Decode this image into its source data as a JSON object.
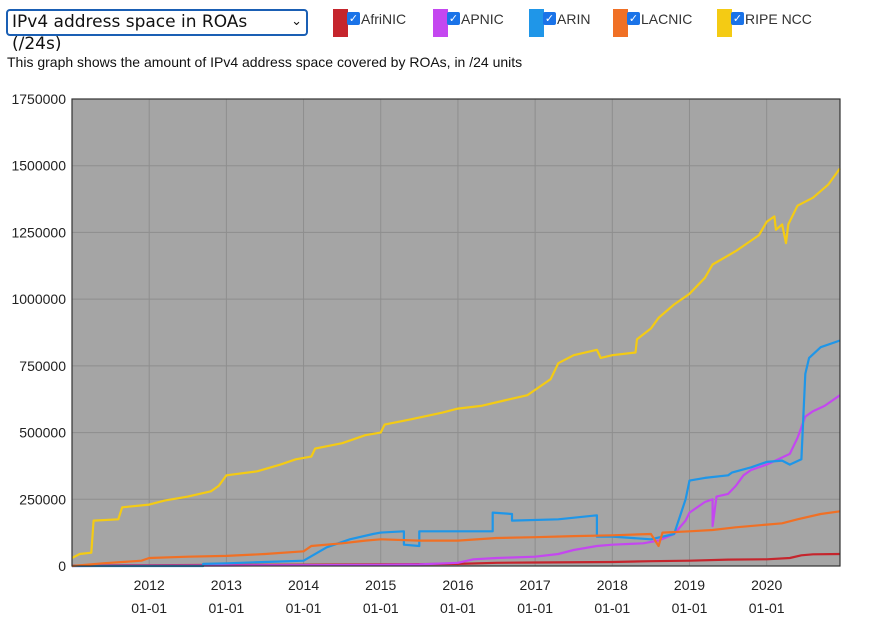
{
  "metric_select": {
    "value": "IPv4 address space in ROAs (/24s)"
  },
  "legend": [
    {
      "name": "AfriNIC",
      "color": "#c5252d"
    },
    {
      "name": "APNIC",
      "color": "#c447f0"
    },
    {
      "name": "ARIN",
      "color": "#1f96e8"
    },
    {
      "name": "LACNIC",
      "color": "#f07025"
    },
    {
      "name": "RIPE NCC",
      "color": "#f4cb14"
    }
  ],
  "description": "This graph shows the amount of IPv4 address space covered by ROAs, in /24 units",
  "chart_data": {
    "type": "line",
    "title": "",
    "xlabel": "",
    "ylabel": "",
    "xlim": [
      2011.0,
      2020.95
    ],
    "ylim": [
      0,
      1750000
    ],
    "background": "#a5a5a5",
    "grid": true,
    "y_ticks": [
      {
        "value": 0,
        "label": "0"
      },
      {
        "value": 250000,
        "label": "250000"
      },
      {
        "value": 500000,
        "label": "500000"
      },
      {
        "value": 750000,
        "label": "750000"
      },
      {
        "value": 1000000,
        "label": "1000000"
      },
      {
        "value": 1250000,
        "label": "1250000"
      },
      {
        "value": 1500000,
        "label": "1500000"
      },
      {
        "value": 1750000,
        "label": "1750000"
      }
    ],
    "x_ticks": [
      {
        "value": 2012,
        "label": "2012",
        "sublabel": "01-01"
      },
      {
        "value": 2013,
        "label": "2013",
        "sublabel": "01-01"
      },
      {
        "value": 2014,
        "label": "2014",
        "sublabel": "01-01"
      },
      {
        "value": 2015,
        "label": "2015",
        "sublabel": "01-01"
      },
      {
        "value": 2016,
        "label": "2016",
        "sublabel": "01-01"
      },
      {
        "value": 2017,
        "label": "2017",
        "sublabel": "01-01"
      },
      {
        "value": 2018,
        "label": "2018",
        "sublabel": "01-01"
      },
      {
        "value": 2019,
        "label": "2019",
        "sublabel": "01-01"
      },
      {
        "value": 2020,
        "label": "2020",
        "sublabel": "01-01"
      }
    ],
    "series": [
      {
        "name": "AfriNIC",
        "color": "#c5252d",
        "points": [
          [
            2011.0,
            1500
          ],
          [
            2011.5,
            2500
          ],
          [
            2012.0,
            3000
          ],
          [
            2013.0,
            4000
          ],
          [
            2014.0,
            5000
          ],
          [
            2015.0,
            6000
          ],
          [
            2016.0,
            8000
          ],
          [
            2016.5,
            12000
          ],
          [
            2017.0,
            13000
          ],
          [
            2018.0,
            15000
          ],
          [
            2018.5,
            18000
          ],
          [
            2019.0,
            20000
          ],
          [
            2019.5,
            24000
          ],
          [
            2020.0,
            25000
          ],
          [
            2020.3,
            30000
          ],
          [
            2020.45,
            40000
          ],
          [
            2020.6,
            44000
          ],
          [
            2020.95,
            45000
          ]
        ]
      },
      {
        "name": "APNIC",
        "color": "#c447f0",
        "points": [
          [
            2011.0,
            0
          ],
          [
            2012.0,
            1000
          ],
          [
            2013.0,
            2000
          ],
          [
            2014.0,
            3000
          ],
          [
            2015.0,
            4000
          ],
          [
            2015.5,
            6000
          ],
          [
            2016.0,
            12000
          ],
          [
            2016.2,
            25000
          ],
          [
            2016.5,
            30000
          ],
          [
            2017.0,
            35000
          ],
          [
            2017.3,
            45000
          ],
          [
            2017.5,
            60000
          ],
          [
            2017.8,
            75000
          ],
          [
            2018.0,
            80000
          ],
          [
            2018.4,
            85000
          ],
          [
            2018.6,
            95000
          ],
          [
            2018.8,
            120000
          ],
          [
            2018.95,
            170000
          ],
          [
            2019.0,
            200000
          ],
          [
            2019.2,
            240000
          ],
          [
            2019.3,
            250000
          ],
          [
            2019.3,
            150000
          ],
          [
            2019.35,
            260000
          ],
          [
            2019.5,
            270000
          ],
          [
            2019.6,
            300000
          ],
          [
            2019.7,
            340000
          ],
          [
            2019.8,
            360000
          ],
          [
            2020.0,
            380000
          ],
          [
            2020.15,
            400000
          ],
          [
            2020.3,
            420000
          ],
          [
            2020.4,
            480000
          ],
          [
            2020.5,
            560000
          ],
          [
            2020.6,
            580000
          ],
          [
            2020.75,
            600000
          ],
          [
            2020.95,
            640000
          ]
        ]
      },
      {
        "name": "ARIN",
        "color": "#1f96e8",
        "points": [
          [
            2011.0,
            0
          ],
          [
            2012.0,
            0
          ],
          [
            2012.7,
            0
          ],
          [
            2012.7,
            8000
          ],
          [
            2013.0,
            10000
          ],
          [
            2013.5,
            15000
          ],
          [
            2014.0,
            20000
          ],
          [
            2014.3,
            70000
          ],
          [
            2014.6,
            100000
          ],
          [
            2014.9,
            120000
          ],
          [
            2015.0,
            125000
          ],
          [
            2015.3,
            130000
          ],
          [
            2015.3,
            80000
          ],
          [
            2015.5,
            75000
          ],
          [
            2015.5,
            130000
          ],
          [
            2016.0,
            130000
          ],
          [
            2016.45,
            130000
          ],
          [
            2016.45,
            200000
          ],
          [
            2016.7,
            195000
          ],
          [
            2016.7,
            170000
          ],
          [
            2017.3,
            175000
          ],
          [
            2017.8,
            190000
          ],
          [
            2017.8,
            110000
          ],
          [
            2018.0,
            110000
          ],
          [
            2018.5,
            100000
          ],
          [
            2018.8,
            120000
          ],
          [
            2018.95,
            250000
          ],
          [
            2019.0,
            320000
          ],
          [
            2019.2,
            330000
          ],
          [
            2019.5,
            340000
          ],
          [
            2019.55,
            350000
          ],
          [
            2019.8,
            370000
          ],
          [
            2020.0,
            390000
          ],
          [
            2020.2,
            395000
          ],
          [
            2020.3,
            380000
          ],
          [
            2020.45,
            400000
          ],
          [
            2020.5,
            720000
          ],
          [
            2020.55,
            780000
          ],
          [
            2020.7,
            820000
          ],
          [
            2020.95,
            845000
          ]
        ]
      },
      {
        "name": "LACNIC",
        "color": "#f07025",
        "points": [
          [
            2011.0,
            0
          ],
          [
            2011.4,
            10000
          ],
          [
            2011.9,
            20000
          ],
          [
            2012.0,
            30000
          ],
          [
            2012.5,
            35000
          ],
          [
            2013.0,
            38000
          ],
          [
            2013.5,
            45000
          ],
          [
            2014.0,
            55000
          ],
          [
            2014.1,
            75000
          ],
          [
            2014.5,
            85000
          ],
          [
            2014.8,
            95000
          ],
          [
            2015.0,
            100000
          ],
          [
            2015.5,
            95000
          ],
          [
            2016.0,
            95000
          ],
          [
            2016.5,
            105000
          ],
          [
            2017.0,
            108000
          ],
          [
            2017.5,
            112000
          ],
          [
            2018.0,
            115000
          ],
          [
            2018.5,
            120000
          ],
          [
            2018.6,
            75000
          ],
          [
            2018.65,
            125000
          ],
          [
            2019.0,
            130000
          ],
          [
            2019.3,
            135000
          ],
          [
            2019.6,
            145000
          ],
          [
            2020.0,
            155000
          ],
          [
            2020.2,
            160000
          ],
          [
            2020.4,
            175000
          ],
          [
            2020.7,
            195000
          ],
          [
            2020.95,
            205000
          ]
        ]
      },
      {
        "name": "RIPE NCC",
        "color": "#f4cb14",
        "points": [
          [
            2011.0,
            30000
          ],
          [
            2011.1,
            45000
          ],
          [
            2011.25,
            50000
          ],
          [
            2011.28,
            170000
          ],
          [
            2011.6,
            175000
          ],
          [
            2011.65,
            220000
          ],
          [
            2012.0,
            230000
          ],
          [
            2012.2,
            245000
          ],
          [
            2012.5,
            260000
          ],
          [
            2012.8,
            280000
          ],
          [
            2012.9,
            300000
          ],
          [
            2013.0,
            340000
          ],
          [
            2013.4,
            355000
          ],
          [
            2013.7,
            380000
          ],
          [
            2013.9,
            400000
          ],
          [
            2014.1,
            410000
          ],
          [
            2014.15,
            440000
          ],
          [
            2014.5,
            460000
          ],
          [
            2014.8,
            490000
          ],
          [
            2015.0,
            500000
          ],
          [
            2015.05,
            530000
          ],
          [
            2015.4,
            550000
          ],
          [
            2015.8,
            575000
          ],
          [
            2016.0,
            590000
          ],
          [
            2016.3,
            600000
          ],
          [
            2016.6,
            620000
          ],
          [
            2016.9,
            640000
          ],
          [
            2017.0,
            660000
          ],
          [
            2017.2,
            700000
          ],
          [
            2017.3,
            760000
          ],
          [
            2017.5,
            790000
          ],
          [
            2017.8,
            810000
          ],
          [
            2017.85,
            780000
          ],
          [
            2018.0,
            790000
          ],
          [
            2018.3,
            800000
          ],
          [
            2018.32,
            850000
          ],
          [
            2018.5,
            890000
          ],
          [
            2018.6,
            930000
          ],
          [
            2018.8,
            980000
          ],
          [
            2019.0,
            1020000
          ],
          [
            2019.2,
            1080000
          ],
          [
            2019.3,
            1130000
          ],
          [
            2019.6,
            1180000
          ],
          [
            2019.9,
            1240000
          ],
          [
            2020.0,
            1290000
          ],
          [
            2020.1,
            1310000
          ],
          [
            2020.12,
            1260000
          ],
          [
            2020.2,
            1280000
          ],
          [
            2020.25,
            1210000
          ],
          [
            2020.28,
            1280000
          ],
          [
            2020.4,
            1350000
          ],
          [
            2020.6,
            1380000
          ],
          [
            2020.8,
            1430000
          ],
          [
            2020.95,
            1490000
          ]
        ]
      }
    ]
  }
}
